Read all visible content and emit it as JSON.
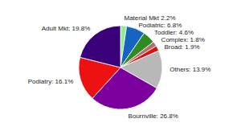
{
  "chart_data": {
    "type": "pie",
    "categories": [
      "Material Mkt 2.2%",
      "Podiatric: 6.8%",
      "Toddler: 4.6%",
      "Complex: 1.8%",
      "Broad: 1.9%",
      "Others: 13.9%",
      "Bournville: 26.8%",
      "Podiatry: 16.1%",
      "Adult Mkt: 19.8%"
    ],
    "values": [
      2.2,
      6.8,
      4.6,
      1.8,
      1.9,
      13.9,
      26.8,
      16.1,
      19.8
    ],
    "colors": [
      "#90ee90",
      "#1565c0",
      "#2e8b22",
      "#b07070",
      "#dd1111",
      "#b8b8b8",
      "#7b009e",
      "#ee1111",
      "#3a007a"
    ]
  }
}
